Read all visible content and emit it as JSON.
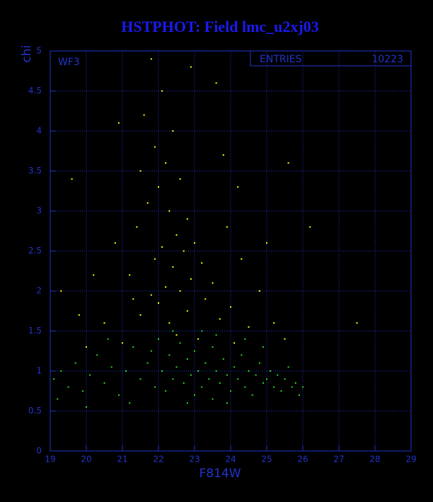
{
  "chart_data": {
    "type": "scatter",
    "title": "HSTPHOT: Field lmc_u2xj03",
    "x_label": "F814W",
    "y_label": "chi",
    "annotation": "WF3",
    "stats_label": "ENTRIES",
    "stats_value": "10223",
    "xlim": [
      19,
      29
    ],
    "ylim": [
      0,
      5
    ],
    "xticks": [
      19,
      20,
      21,
      22,
      23,
      24,
      25,
      26,
      27,
      28,
      29
    ],
    "yticks": [
      0,
      0.5,
      1,
      1.5,
      2,
      2.5,
      3,
      3.5,
      4,
      4.5,
      5
    ],
    "grid": true,
    "series": [
      {
        "color": "#ffff00",
        "x": [
          21.8,
          22.1,
          21.6,
          22.4,
          21.9,
          22.2,
          21.5,
          22.6,
          22.0,
          21.7,
          22.3,
          22.8,
          21.4,
          22.5,
          23.0,
          22.1,
          22.7,
          21.9,
          23.2,
          22.4,
          21.2,
          22.9,
          23.5,
          22.2,
          22.6,
          21.8,
          23.3,
          22.0,
          24.0,
          22.8,
          21.5,
          23.7,
          22.3,
          24.5,
          20.5,
          19.8,
          20.2,
          19.6,
          20.8,
          24.8,
          25.2,
          25.5,
          26.2,
          27.5,
          23.9,
          24.3,
          20.9,
          23.6,
          24.2,
          25.6,
          21.0,
          23.1,
          22.5,
          24.1,
          20.0,
          23.8,
          22.9,
          21.3,
          25.0,
          19.3
        ],
        "values": [
          4.9,
          4.5,
          4.2,
          4.0,
          3.8,
          3.6,
          3.5,
          3.4,
          3.3,
          3.1,
          3.0,
          2.9,
          2.8,
          2.7,
          2.6,
          2.55,
          2.5,
          2.4,
          2.35,
          2.3,
          2.2,
          2.15,
          2.1,
          2.05,
          2.0,
          1.95,
          1.9,
          1.85,
          1.8,
          1.75,
          1.7,
          1.65,
          1.6,
          1.55,
          1.6,
          1.7,
          2.2,
          3.4,
          2.6,
          2.0,
          1.6,
          1.4,
          2.8,
          1.6,
          2.8,
          2.4,
          4.1,
          4.6,
          3.3,
          3.6,
          1.35,
          1.4,
          1.45,
          1.35,
          1.3,
          3.7,
          4.8,
          1.9,
          2.6,
          2.0
        ]
      },
      {
        "color": "#22e022",
        "x": [
          19.1,
          19.3,
          19.5,
          19.7,
          19.9,
          20.1,
          20.3,
          20.5,
          20.7,
          20.9,
          21.1,
          21.3,
          21.5,
          21.7,
          21.9,
          22.0,
          22.1,
          22.2,
          22.3,
          22.4,
          22.5,
          22.6,
          22.7,
          22.8,
          22.9,
          23.0,
          23.0,
          23.1,
          23.2,
          23.3,
          23.4,
          23.5,
          23.5,
          23.6,
          23.7,
          23.8,
          23.9,
          24.0,
          24.1,
          24.2,
          24.3,
          24.4,
          24.5,
          24.6,
          24.7,
          24.8,
          24.9,
          25.0,
          25.1,
          25.2,
          25.3,
          25.4,
          25.5,
          25.6,
          25.7,
          25.8,
          25.9,
          26.0,
          21.2,
          22.8,
          23.6,
          24.4,
          20.0,
          19.2,
          21.8,
          23.2,
          22.4,
          24.9,
          20.6,
          23.9
        ],
        "values": [
          0.9,
          1.0,
          0.8,
          1.1,
          0.75,
          0.95,
          1.2,
          0.85,
          1.05,
          0.7,
          1.0,
          1.3,
          0.9,
          1.1,
          0.8,
          1.4,
          1.0,
          0.75,
          1.2,
          0.9,
          1.05,
          1.35,
          0.85,
          1.15,
          0.95,
          1.25,
          0.7,
          1.0,
          0.8,
          1.1,
          0.9,
          1.3,
          0.65,
          1.0,
          0.85,
          1.15,
          0.95,
          0.75,
          1.05,
          0.9,
          1.2,
          0.8,
          1.0,
          0.7,
          0.95,
          1.1,
          0.85,
          0.9,
          1.0,
          0.8,
          0.95,
          0.75,
          0.9,
          1.05,
          0.8,
          0.85,
          0.7,
          0.8,
          0.6,
          0.6,
          1.45,
          1.4,
          0.55,
          0.65,
          1.25,
          1.5,
          1.5,
          1.3,
          1.4,
          0.6
        ]
      }
    ]
  }
}
